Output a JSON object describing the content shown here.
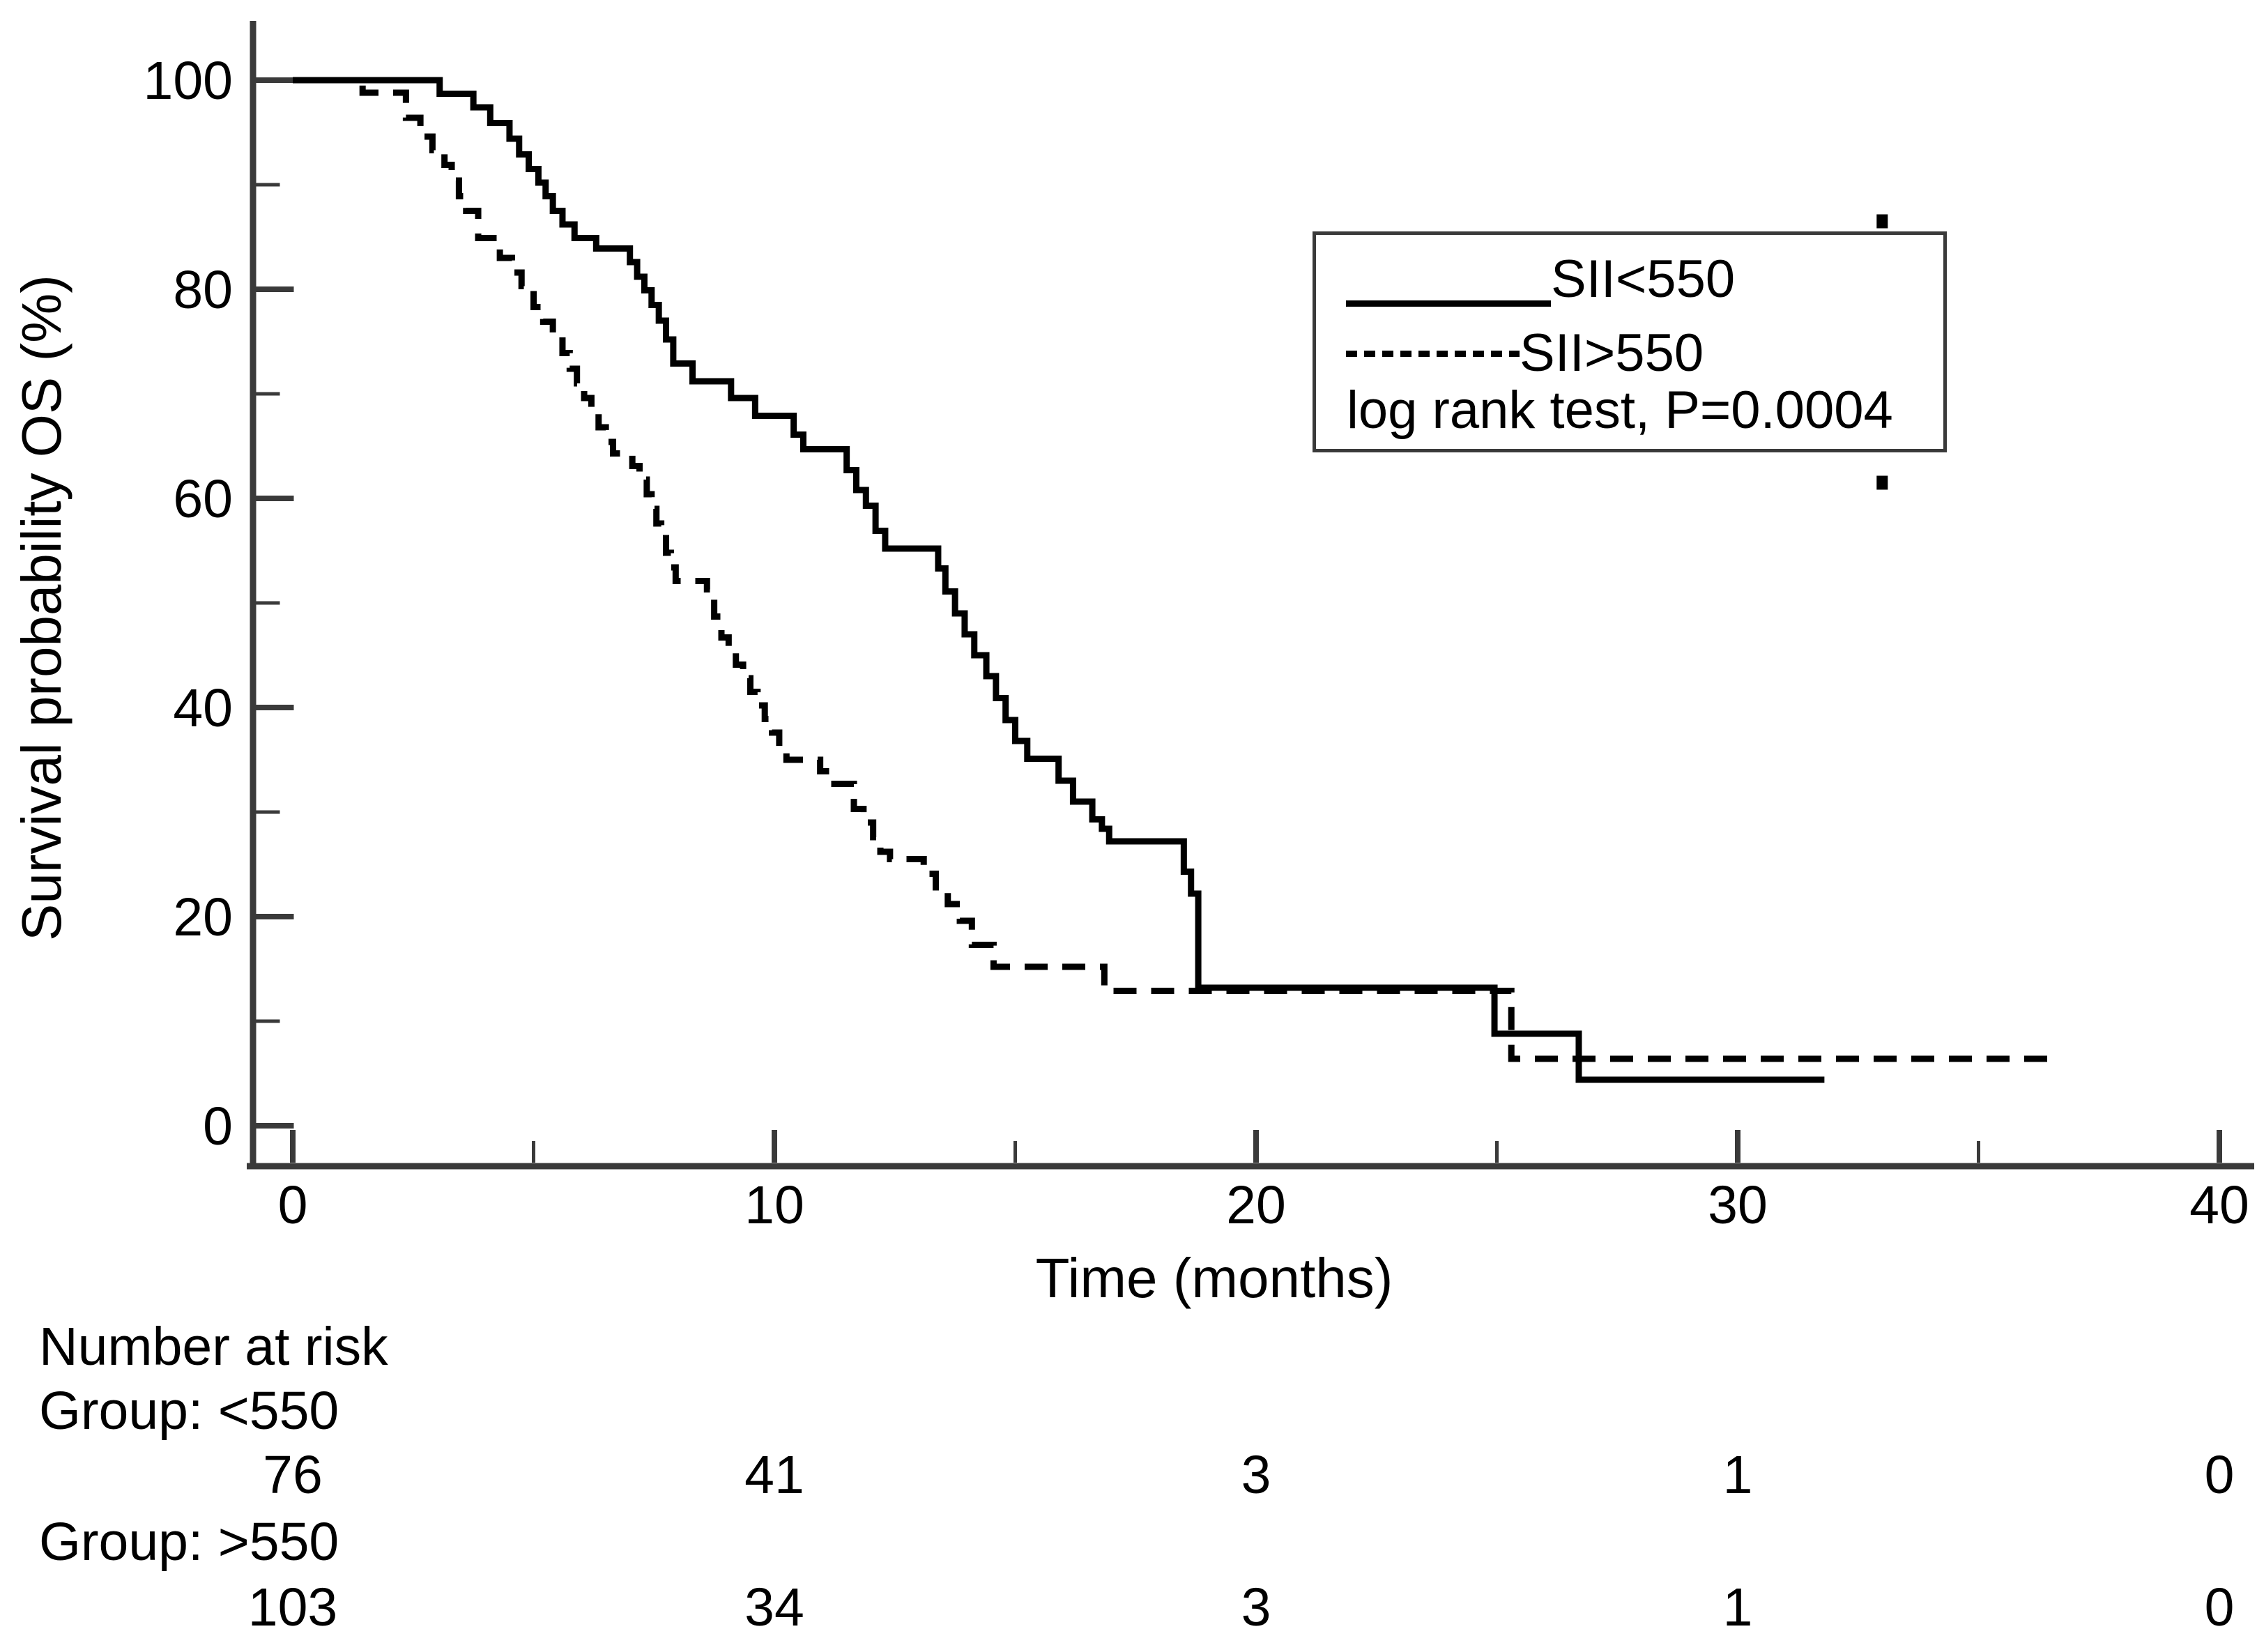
{
  "figure": {
    "background": "#ffffff",
    "ink_color": "#000000",
    "axis_color": "#3a3a3a"
  },
  "axes": {
    "y": {
      "title": "Survival probability OS (%)",
      "ticks": [
        0,
        20,
        40,
        60,
        80,
        100
      ],
      "minor_ticks": [
        10,
        30,
        50,
        70,
        90
      ],
      "range": [
        0,
        100
      ]
    },
    "x": {
      "title": "Time (months)",
      "ticks": [
        0,
        10,
        20,
        30,
        40
      ],
      "minor_ticks": [
        5,
        15,
        25,
        35
      ],
      "range": [
        0,
        40
      ]
    }
  },
  "legend": {
    "position": "upper-right",
    "series": [
      {
        "label": "SII<550",
        "line": "solid"
      },
      {
        "label": "SII>550",
        "line": "dashed"
      }
    ],
    "note": "log rank test, P=0.0004"
  },
  "chart_data": {
    "type": "line",
    "subtype": "kaplan-meier-step",
    "title": "",
    "xlabel": "Time (months)",
    "ylabel": "Survival probability OS (%)",
    "xlim": [
      0,
      40
    ],
    "ylim": [
      0,
      100
    ],
    "grid": false,
    "series": [
      {
        "name": "SII<550",
        "style": "solid",
        "end_time": 31.8,
        "steps": [
          [
            0,
            100
          ],
          [
            3.05,
            98.7
          ],
          [
            3.75,
            97.4
          ],
          [
            4.1,
            95.9
          ],
          [
            4.5,
            94.4
          ],
          [
            4.7,
            92.9
          ],
          [
            4.9,
            91.5
          ],
          [
            5.1,
            90.2
          ],
          [
            5.25,
            88.9
          ],
          [
            5.4,
            87.5
          ],
          [
            5.6,
            86.2
          ],
          [
            5.85,
            84.9
          ],
          [
            6.3,
            83.9
          ],
          [
            7.0,
            82.6
          ],
          [
            7.15,
            81.2
          ],
          [
            7.3,
            79.9
          ],
          [
            7.45,
            78.5
          ],
          [
            7.6,
            77.0
          ],
          [
            7.75,
            75.2
          ],
          [
            7.9,
            72.9
          ],
          [
            8.3,
            71.2
          ],
          [
            9.1,
            69.6
          ],
          [
            9.6,
            67.9
          ],
          [
            10.4,
            66.1
          ],
          [
            10.6,
            64.7
          ],
          [
            11.5,
            62.7
          ],
          [
            11.7,
            60.8
          ],
          [
            11.9,
            59.3
          ],
          [
            12.1,
            56.9
          ],
          [
            12.3,
            55.2
          ],
          [
            13.4,
            53.3
          ],
          [
            13.55,
            51.1
          ],
          [
            13.75,
            49.0
          ],
          [
            13.95,
            47.0
          ],
          [
            14.15,
            45.0
          ],
          [
            14.4,
            43.0
          ],
          [
            14.6,
            40.9
          ],
          [
            14.8,
            38.8
          ],
          [
            15.0,
            36.8
          ],
          [
            15.25,
            35.1
          ],
          [
            15.9,
            33.0
          ],
          [
            16.2,
            31.0
          ],
          [
            16.6,
            29.3
          ],
          [
            16.8,
            28.4
          ],
          [
            16.95,
            27.2
          ],
          [
            18.5,
            24.3
          ],
          [
            18.65,
            22.2
          ],
          [
            18.8,
            13.2
          ],
          [
            24.95,
            8.8
          ],
          [
            26.7,
            4.4
          ]
        ]
      },
      {
        "name": "SII>550",
        "style": "dashed",
        "end_time": 36.7,
        "steps": [
          [
            0,
            100
          ],
          [
            1.45,
            98.8
          ],
          [
            2.35,
            96.4
          ],
          [
            2.65,
            94.6
          ],
          [
            2.9,
            93.3
          ],
          [
            3.15,
            91.9
          ],
          [
            3.3,
            90.4
          ],
          [
            3.45,
            88.9
          ],
          [
            3.6,
            87.5
          ],
          [
            3.85,
            84.9
          ],
          [
            4.3,
            83.0
          ],
          [
            4.55,
            81.6
          ],
          [
            4.75,
            80.3
          ],
          [
            5.0,
            78.3
          ],
          [
            5.2,
            76.9
          ],
          [
            5.4,
            75.5
          ],
          [
            5.6,
            73.9
          ],
          [
            5.75,
            72.4
          ],
          [
            5.9,
            71.0
          ],
          [
            6.05,
            69.6
          ],
          [
            6.2,
            68.2
          ],
          [
            6.35,
            66.8
          ],
          [
            6.5,
            65.4
          ],
          [
            6.65,
            64.3
          ],
          [
            7.05,
            63.1
          ],
          [
            7.2,
            61.8
          ],
          [
            7.35,
            60.4
          ],
          [
            7.45,
            59.0
          ],
          [
            7.55,
            57.6
          ],
          [
            7.65,
            56.2
          ],
          [
            7.75,
            54.8
          ],
          [
            7.85,
            53.4
          ],
          [
            7.95,
            52.1
          ],
          [
            8.6,
            51.3
          ],
          [
            8.75,
            48.7
          ],
          [
            8.9,
            46.7
          ],
          [
            9.05,
            45.4
          ],
          [
            9.2,
            44.1
          ],
          [
            9.35,
            42.8
          ],
          [
            9.5,
            41.5
          ],
          [
            9.65,
            40.2
          ],
          [
            9.8,
            38.9
          ],
          [
            9.95,
            37.6
          ],
          [
            10.1,
            36.3
          ],
          [
            10.25,
            35.0
          ],
          [
            10.95,
            33.9
          ],
          [
            11.15,
            32.7
          ],
          [
            11.65,
            30.3
          ],
          [
            11.85,
            29.0
          ],
          [
            12.05,
            27.6
          ],
          [
            12.2,
            26.2
          ],
          [
            12.4,
            25.5
          ],
          [
            13.1,
            24.1
          ],
          [
            13.35,
            22.8
          ],
          [
            13.6,
            21.2
          ],
          [
            13.85,
            19.6
          ],
          [
            14.1,
            17.3
          ],
          [
            14.55,
            15.2
          ],
          [
            16.85,
            12.9
          ],
          [
            25.3,
            6.4
          ]
        ]
      }
    ],
    "annotations": {
      "stray_marks": [
        {
          "x_month": 33.0,
          "y_percent": 86.5
        },
        {
          "x_month": 33.0,
          "y_percent": 61.5
        }
      ]
    }
  },
  "risk_table": {
    "header": "Number at risk",
    "times": [
      0,
      10,
      20,
      30,
      40
    ],
    "groups": [
      {
        "label": "Group: <550",
        "values": [
          76,
          41,
          3,
          1,
          0
        ]
      },
      {
        "label": "Group: >550",
        "values": [
          103,
          34,
          3,
          1,
          0
        ]
      }
    ]
  }
}
